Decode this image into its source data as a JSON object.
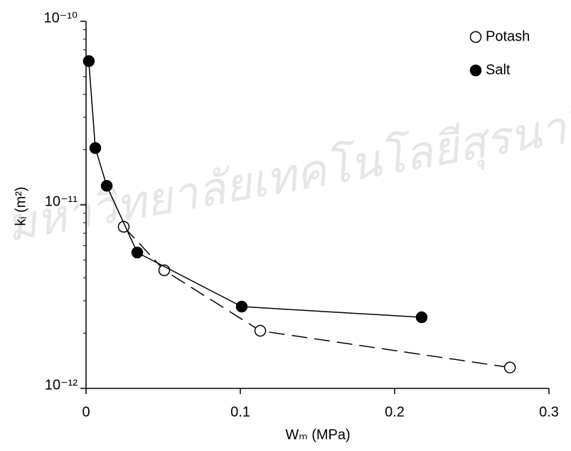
{
  "chart_data": {
    "type": "scatter",
    "watermark": "มหาวิทยาลัยเทคโนโลยีสุรนารี",
    "x_label": "Wₘ (MPa)",
    "y_label": "kᵢ (m²)",
    "xlim": [
      0,
      0.3
    ],
    "xticks": [
      0,
      0.1,
      0.2,
      0.3
    ],
    "ylim": [
      1e-12,
      1e-10
    ],
    "y_scale": "log",
    "yticks": [
      {
        "value": 1e-12,
        "label": "10⁻¹²"
      },
      {
        "value": 1e-11,
        "label": "10⁻¹¹"
      },
      {
        "value": 1e-10,
        "label": "10⁻¹⁰"
      }
    ],
    "legend": "upper right",
    "series": [
      {
        "name": "Potash",
        "color": "#000000",
        "marker_fill": "#ffffff",
        "line_style": "dashed",
        "x": [
          0.0244,
          0.0507,
          0.1129,
          0.2747
        ],
        "values": [
          7.6e-12,
          4.4e-12,
          2.06e-12,
          1.3e-12
        ]
      },
      {
        "name": "Salt",
        "color": "#000000",
        "marker_fill": "#000000",
        "line_style": "solid",
        "x": [
          0.0018,
          0.006,
          0.0134,
          0.0332,
          0.1009,
          0.2175
        ],
        "values": [
          6.07e-11,
          2.04e-11,
          1.27e-11,
          5.5e-12,
          2.79e-12,
          2.44e-12
        ]
      }
    ]
  }
}
